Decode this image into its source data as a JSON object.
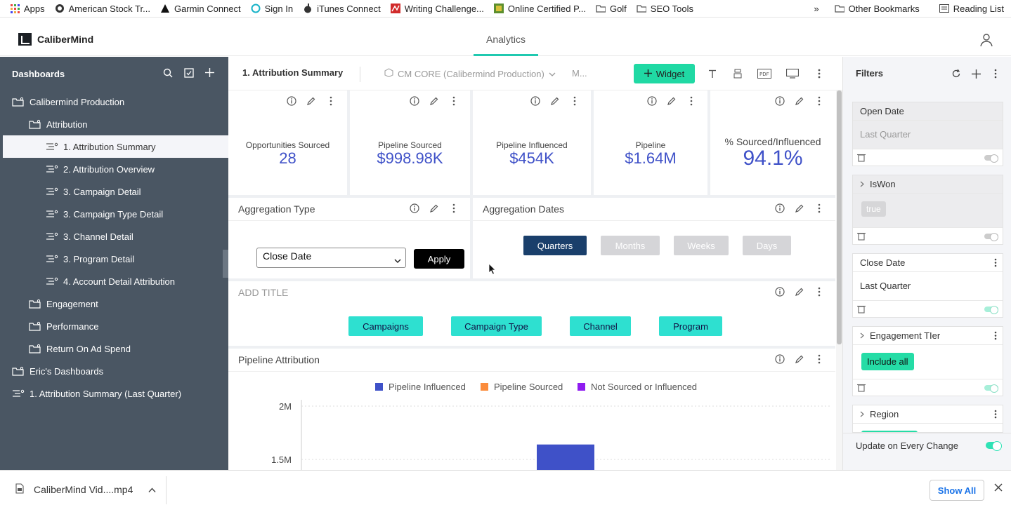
{
  "bookmarks": {
    "items": [
      "Apps",
      "American Stock Tr...",
      "Garmin Connect",
      "Sign In",
      "iTunes Connect",
      "Writing Challenge...",
      "Online Certified P...",
      "Golf",
      "SEO Tools"
    ],
    "more": "»",
    "other": "Other Bookmarks",
    "reading_list": "Reading List"
  },
  "app": {
    "name": "CaliberMind",
    "tab": "Analytics"
  },
  "sidebar": {
    "title": "Dashboards",
    "items": [
      {
        "label": "Calibermind Production",
        "indent": 0
      },
      {
        "label": "Attribution",
        "indent": 1
      },
      {
        "label": "1. Attribution Summary",
        "indent": 2
      },
      {
        "label": "2. Attribution Overview",
        "indent": 2
      },
      {
        "label": "3. Campaign Detail",
        "indent": 2
      },
      {
        "label": "3. Campaign Type Detail",
        "indent": 2
      },
      {
        "label": "3. Channel Detail",
        "indent": 2
      },
      {
        "label": "3. Program Detail",
        "indent": 2
      },
      {
        "label": "4. Account Detail Attribution",
        "indent": 2
      },
      {
        "label": "Engagement",
        "indent": 1
      },
      {
        "label": "Performance",
        "indent": 1
      },
      {
        "label": "Return On Ad Spend",
        "indent": 1
      },
      {
        "label": "Eric's Dashboards",
        "indent": 0
      },
      {
        "label": "1. Attribution Summary (Last Quarter)",
        "indent": 0
      }
    ]
  },
  "toolbar": {
    "title": "1. Attribution Summary",
    "database": "CM CORE (Calibermind Production)",
    "more": "M...",
    "widget_label": "Widget"
  },
  "kpis": [
    {
      "label": "Opportunities Sourced",
      "value": "28"
    },
    {
      "label": "Pipeline Sourced",
      "value": "$998.98K"
    },
    {
      "label": "Pipeline Influenced",
      "value": "$454K"
    },
    {
      "label": "Pipeline",
      "value": "$1.64M"
    },
    {
      "label": "% Sourced/Influenced",
      "value": "94.1%"
    }
  ],
  "aggregation_type": {
    "title": "Aggregation Type",
    "selected": "Close Date",
    "apply": "Apply"
  },
  "aggregation_dates": {
    "title": "Aggregation Dates",
    "options": [
      "Quarters",
      "Months",
      "Weeks",
      "Days"
    ]
  },
  "tabs_card": {
    "title": "ADD TITLE",
    "buttons": [
      "Campaigns",
      "Campaign Type",
      "Channel",
      "Program"
    ]
  },
  "pipeline_chart": {
    "title": "Pipeline Attribution",
    "legend": [
      {
        "name": "Pipeline Influenced",
        "color": "#3f51c8"
      },
      {
        "name": "Pipeline Sourced",
        "color": "#fb8c3c"
      },
      {
        "name": "Not Sourced or Influenced",
        "color": "#8f1cf0"
      }
    ],
    "y_ticks": [
      "2M",
      "1.5M"
    ]
  },
  "chart_data": {
    "type": "bar",
    "title": "Pipeline Attribution",
    "series": [
      {
        "name": "Pipeline Influenced",
        "values": [
          1640000
        ]
      }
    ],
    "ylim": [
      1500000,
      2000000
    ],
    "legend": "top"
  },
  "filters": {
    "title": "Filters",
    "cards": [
      {
        "title": "Open Date",
        "value": "Last Quarter"
      },
      {
        "title": "IsWon",
        "value": "true"
      },
      {
        "title": "Close Date",
        "value": "Last Quarter"
      },
      {
        "title": "Engagement TIer",
        "value": "Include all"
      },
      {
        "title": "Region"
      }
    ],
    "update": "Update on Every Change"
  },
  "download": {
    "file": "CaliberMind Vid....mp4",
    "show_all": "Show All"
  }
}
